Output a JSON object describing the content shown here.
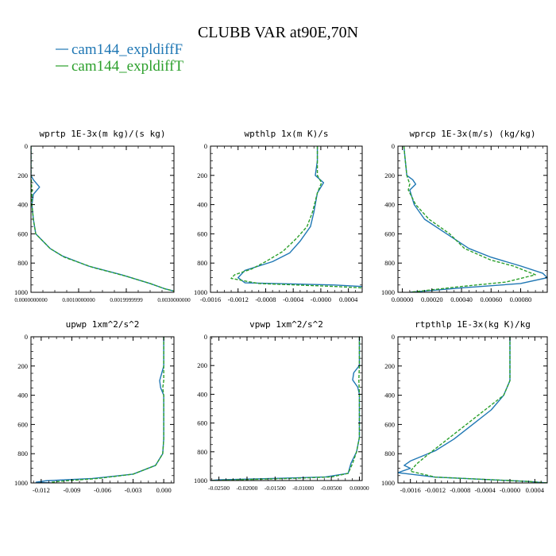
{
  "figure": {
    "title": "CLUBB VAR at90E,70N",
    "colors": {
      "background": "#ffffff",
      "axis": "#000000",
      "series_f": "#1f77b4",
      "series_t": "#2ca02c"
    }
  },
  "legend": [
    {
      "label": "cam144_expldiffF",
      "color": "#1f77b4",
      "dash": "solid"
    },
    {
      "label": "cam144_expldiffT",
      "color": "#2ca02c",
      "dash": "dashed"
    }
  ],
  "chart_data": [
    {
      "type": "line",
      "title": "wprtp  1E-3x(m kg)/(s kg)",
      "xlim": [
        0,
        0.003
      ],
      "ylim": [
        1000,
        0
      ],
      "xticks": [
        0,
        0.001,
        0.002,
        0.003
      ],
      "xtick_labels": [
        "0.0000000000",
        "0.0010000000",
        "0.0019999999",
        "0.0030000000"
      ],
      "yticks": [
        0,
        200,
        400,
        600,
        800,
        1000
      ],
      "ytick_labels": [
        "0",
        "200",
        "400",
        "600",
        "800",
        "1000"
      ],
      "series": [
        {
          "name": "cam144_expldiffF",
          "points": [
            [
              0,
              0
            ],
            [
              0,
              200
            ],
            [
              5e-05,
              230
            ],
            [
              0.00018,
              280
            ],
            [
              5e-05,
              330
            ],
            [
              2e-05,
              400
            ],
            [
              5e-05,
              500
            ],
            [
              0.0001,
              600
            ],
            [
              0.0004,
              700
            ],
            [
              0.00065,
              750
            ],
            [
              0.0012,
              820
            ],
            [
              0.0019,
              880
            ],
            [
              0.0025,
              940
            ],
            [
              0.0028,
              975
            ],
            [
              0.0031,
              1000
            ]
          ]
        },
        {
          "name": "cam144_expldiffT",
          "points": [
            [
              0,
              0
            ],
            [
              0,
              200
            ],
            [
              2e-05,
              300
            ],
            [
              2e-05,
              400
            ],
            [
              5e-05,
              500
            ],
            [
              0.0001,
              600
            ],
            [
              0.0004,
              700
            ],
            [
              0.0007,
              760
            ],
            [
              0.0013,
              830
            ],
            [
              0.002,
              890
            ],
            [
              0.0025,
              940
            ],
            [
              0.0028,
              975
            ],
            [
              0.0031,
              1000
            ]
          ]
        }
      ]
    },
    {
      "type": "line",
      "title": "wpthlp  1x(m K)/s",
      "xlim": [
        -0.0016,
        0.0006
      ],
      "ylim": [
        1000,
        0
      ],
      "xticks": [
        -0.0016,
        -0.0012,
        -0.0008,
        -0.0004,
        0,
        0.0004
      ],
      "xtick_labels": [
        "-0.0016",
        "-0.0012",
        "-0.0008",
        "-0.0004",
        "-0.0000",
        "0.0004"
      ],
      "yticks": [
        0,
        200,
        400,
        600,
        800,
        1000
      ],
      "ytick_labels": [
        "0",
        "200",
        "400",
        "600",
        "800",
        "1000"
      ],
      "series": [
        {
          "name": "cam144_expldiffF",
          "points": [
            [
              -5e-05,
              0
            ],
            [
              -5e-05,
              100
            ],
            [
              -8e-05,
              200
            ],
            [
              4e-05,
              250
            ],
            [
              -5e-05,
              320
            ],
            [
              -0.0001,
              450
            ],
            [
              -0.00015,
              550
            ],
            [
              -0.0003,
              650
            ],
            [
              -0.00045,
              730
            ],
            [
              -0.0007,
              790
            ],
            [
              -0.0011,
              850
            ],
            [
              -0.0012,
              900
            ],
            [
              -0.0011,
              935
            ],
            [
              0.0002,
              950
            ],
            [
              0.0006,
              960
            ]
          ]
        },
        {
          "name": "cam144_expldiffT",
          "points": [
            [
              -5e-05,
              0
            ],
            [
              -5e-05,
              100
            ],
            [
              -5e-05,
              200
            ],
            [
              1e-05,
              250
            ],
            [
              -5e-05,
              320
            ],
            [
              -0.00012,
              450
            ],
            [
              -0.0002,
              550
            ],
            [
              -0.00035,
              630
            ],
            [
              -0.00055,
              720
            ],
            [
              -0.0008,
              790
            ],
            [
              -0.001,
              840
            ],
            [
              -0.00125,
              880
            ],
            [
              -0.0013,
              905
            ],
            [
              -0.0009,
              940
            ],
            [
              0.0002,
              960
            ],
            [
              0.0006,
              970
            ]
          ]
        }
      ]
    },
    {
      "type": "line",
      "title": "wprcp  1E-3x(m/s) (kg/kg)",
      "xlim": [
        -3e-05,
        0.00098
      ],
      "ylim": [
        1000,
        0
      ],
      "xticks": [
        0,
        0.0002,
        0.0004,
        0.0006,
        0.0008
      ],
      "xtick_labels": [
        "0.00000",
        "0.00020",
        "0.00040",
        "0.00060",
        "0.00080"
      ],
      "yticks": [
        0,
        200,
        400,
        600,
        800,
        1000
      ],
      "ytick_labels": [
        "0",
        "200",
        "400",
        "600",
        "800",
        "1000"
      ],
      "series": [
        {
          "name": "cam144_expldiffF",
          "points": [
            [
              1e-05,
              0
            ],
            [
              2e-05,
              100
            ],
            [
              3e-05,
              200
            ],
            [
              7e-05,
              230
            ],
            [
              9e-05,
              260
            ],
            [
              5e-05,
              300
            ],
            [
              8e-05,
              400
            ],
            [
              0.00015,
              500
            ],
            [
              0.0003,
              600
            ],
            [
              0.00045,
              700
            ],
            [
              0.0006,
              760
            ],
            [
              0.0008,
              820
            ],
            [
              0.00095,
              870
            ],
            [
              0.00098,
              900
            ],
            [
              0.0008,
              940
            ],
            [
              0.0004,
              970
            ],
            [
              5e-05,
              1000
            ]
          ]
        },
        {
          "name": "cam144_expldiffT",
          "points": [
            [
              1e-05,
              0
            ],
            [
              2e-05,
              100
            ],
            [
              3e-05,
              200
            ],
            [
              5e-05,
              260
            ],
            [
              4e-05,
              300
            ],
            [
              9e-05,
              400
            ],
            [
              0.00018,
              500
            ],
            [
              0.00032,
              600
            ],
            [
              0.00042,
              700
            ],
            [
              0.0006,
              780
            ],
            [
              0.00075,
              820
            ],
            [
              0.0009,
              880
            ],
            [
              0.0007,
              930
            ],
            [
              0.0004,
              960
            ],
            [
              5e-05,
              1000
            ]
          ]
        }
      ]
    },
    {
      "type": "line",
      "title": "upwp  1xm^2/s^2",
      "xlim": [
        -0.013,
        0.001
      ],
      "ylim": [
        1000,
        0
      ],
      "xticks": [
        -0.012,
        -0.009,
        -0.006,
        -0.003,
        0
      ],
      "xtick_labels": [
        "-0.012",
        "-0.009",
        "-0.006",
        "-0.003",
        "0.000"
      ],
      "yticks": [
        0,
        200,
        400,
        600,
        800,
        1000
      ],
      "ytick_labels": [
        "0",
        "200",
        "400",
        "600",
        "800",
        "1000"
      ],
      "series": [
        {
          "name": "cam144_expldiffF",
          "points": [
            [
              0,
              0
            ],
            [
              0,
              200
            ],
            [
              -0.0002,
              250
            ],
            [
              -0.0004,
              300
            ],
            [
              -0.0003,
              350
            ],
            [
              0,
              400
            ],
            [
              0,
              500
            ],
            [
              0,
              600
            ],
            [
              0,
              700
            ],
            [
              -0.0001,
              800
            ],
            [
              -0.0008,
              880
            ],
            [
              -0.003,
              940
            ],
            [
              -0.007,
              970
            ],
            [
              -0.0115,
              985
            ],
            [
              -0.0125,
              995
            ],
            [
              -0.011,
              1000
            ]
          ]
        },
        {
          "name": "cam144_expldiffT",
          "points": [
            [
              0,
              0
            ],
            [
              0,
              200
            ],
            [
              0,
              300
            ],
            [
              -0.0001,
              350
            ],
            [
              0,
              400
            ],
            [
              0,
              500
            ],
            [
              0,
              600
            ],
            [
              0,
              700
            ],
            [
              -0.0001,
              800
            ],
            [
              -0.0008,
              880
            ],
            [
              -0.003,
              940
            ],
            [
              -0.0065,
              970
            ],
            [
              -0.0095,
              985
            ],
            [
              -0.011,
              995
            ],
            [
              -0.011,
              1000
            ]
          ]
        }
      ]
    },
    {
      "type": "line",
      "title": "vpwp  1xm^2/s^2",
      "xlim": [
        -0.0265,
        0.0005
      ],
      "ylim": [
        1000,
        0
      ],
      "xticks": [
        -0.025,
        -0.02,
        -0.015,
        -0.01,
        -0.005,
        0
      ],
      "xtick_labels": [
        "-0.02500",
        "-0.02000",
        "-0.01500",
        "-0.01000",
        "-0.00500",
        "0.00000"
      ],
      "yticks": [
        0,
        200,
        400,
        600,
        800,
        1000
      ],
      "ytick_labels": [
        "0",
        "200",
        "400",
        "600",
        "800",
        "1000"
      ],
      "series": [
        {
          "name": "cam144_expldiffF",
          "points": [
            [
              0,
              0
            ],
            [
              0,
              200
            ],
            [
              -0.001,
              250
            ],
            [
              -0.0012,
              300
            ],
            [
              -0.0003,
              350
            ],
            [
              0,
              400
            ],
            [
              0,
              600
            ],
            [
              0,
              700
            ],
            [
              -0.0005,
              800
            ],
            [
              -0.0015,
              880
            ],
            [
              -0.002,
              950
            ],
            [
              -0.006,
              975
            ],
            [
              -0.015,
              985
            ],
            [
              -0.025,
              995
            ],
            [
              -0.0265,
              1000
            ]
          ]
        },
        {
          "name": "cam144_expldiffT",
          "points": [
            [
              0,
              0
            ],
            [
              0,
              200
            ],
            [
              -0.0001,
              300
            ],
            [
              0,
              400
            ],
            [
              0,
              600
            ],
            [
              0,
              700
            ],
            [
              -0.0005,
              800
            ],
            [
              -0.0012,
              880
            ],
            [
              -0.002,
              950
            ],
            [
              -0.005,
              975
            ],
            [
              -0.012,
              985
            ],
            [
              -0.022,
              995
            ],
            [
              -0.0265,
              1000
            ]
          ]
        }
      ]
    },
    {
      "type": "line",
      "title": "rtpthlp  1E-3x(kg K)/kg",
      "xlim": [
        -0.0018,
        0.0006
      ],
      "ylim": [
        1000,
        0
      ],
      "xticks": [
        -0.0016,
        -0.0012,
        -0.0008,
        -0.0004,
        0,
        0.0004
      ],
      "xtick_labels": [
        "-0.0016",
        "-0.0012",
        "-0.0008",
        "-0.0004",
        "-0.0000",
        "0.0004"
      ],
      "yticks": [
        0,
        200,
        400,
        600,
        800,
        1000
      ],
      "ytick_labels": [
        "0",
        "200",
        "400",
        "600",
        "800",
        "1000"
      ],
      "series": [
        {
          "name": "cam144_expldiffF",
          "points": [
            [
              0,
              0
            ],
            [
              0,
              200
            ],
            [
              0,
              300
            ],
            [
              -0.0001,
              400
            ],
            [
              -0.0003,
              500
            ],
            [
              -0.0006,
              600
            ],
            [
              -0.0009,
              700
            ],
            [
              -0.0012,
              780
            ],
            [
              -0.0016,
              850
            ],
            [
              -0.0017,
              880
            ],
            [
              -0.0016,
              900
            ],
            [
              -0.0018,
              930
            ],
            [
              -0.0012,
              960
            ],
            [
              0.0003,
              990
            ],
            [
              0.0006,
              1000
            ]
          ]
        },
        {
          "name": "cam144_expldiffT",
          "points": [
            [
              0,
              0
            ],
            [
              0,
              200
            ],
            [
              0,
              300
            ],
            [
              -0.0001,
              400
            ],
            [
              -0.0004,
              500
            ],
            [
              -0.0007,
              600
            ],
            [
              -0.001,
              700
            ],
            [
              -0.0013,
              800
            ],
            [
              -0.0015,
              870
            ],
            [
              -0.0016,
              920
            ],
            [
              -0.0012,
              960
            ],
            [
              0.0003,
              990
            ],
            [
              0.0006,
              1000
            ]
          ]
        }
      ]
    }
  ]
}
